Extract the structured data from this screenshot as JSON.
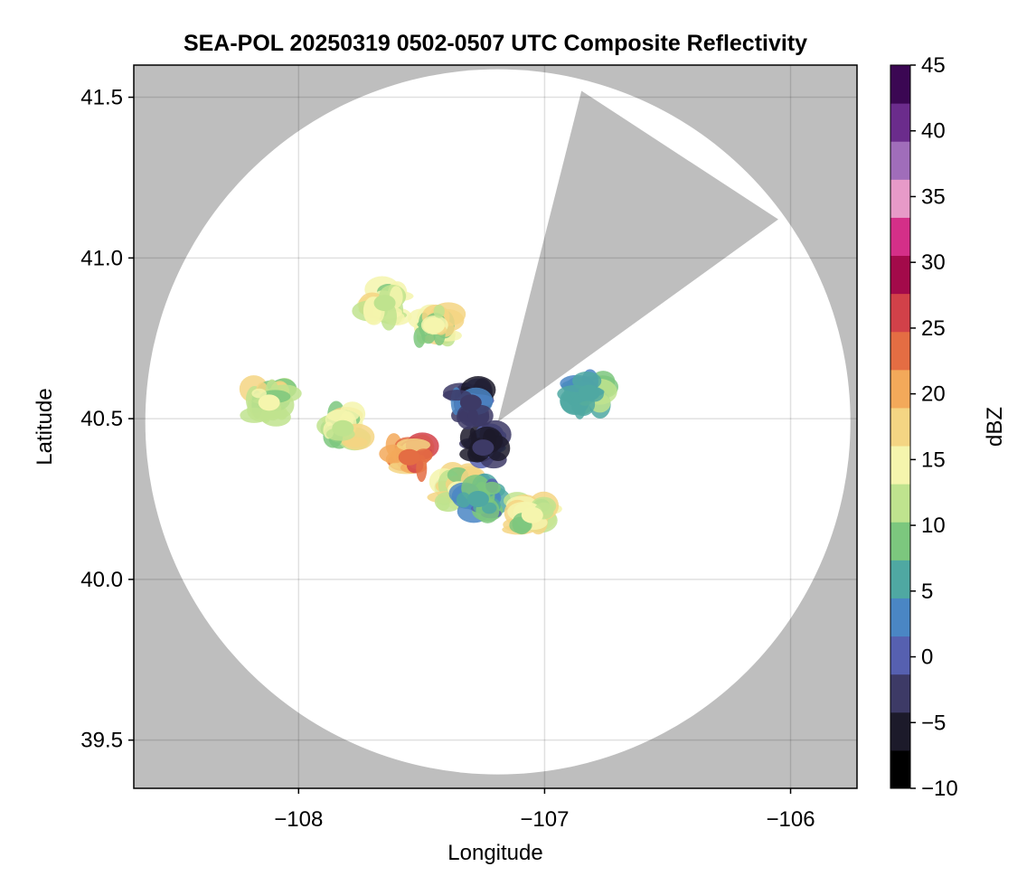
{
  "chart_data": {
    "type": "heatmap",
    "title": "SEA-POL 20250319 0502-0507 UTC Composite Reflectivity",
    "xlabel": "Longitude",
    "ylabel": "Latitude",
    "xlim": [
      -108.67,
      -105.73
    ],
    "ylim": [
      39.35,
      41.6
    ],
    "xticks": [
      -108,
      -107,
      -106
    ],
    "xtick_labels": [
      "−108",
      "−107",
      "−106"
    ],
    "yticks": [
      39.5,
      40.0,
      40.5,
      41.0,
      41.5
    ],
    "ytick_labels": [
      "39.5",
      "40.0",
      "40.5",
      "41.0",
      "41.5"
    ],
    "grid": true,
    "background_color": "#bebebe",
    "coverage_color": "#ffffff",
    "radar_center": [
      -107.19,
      40.49
    ],
    "missing_sector_lon_lat": [
      [
        -107.19,
        40.49
      ],
      [
        -106.85,
        41.52
      ],
      [
        -106.05,
        41.12
      ]
    ],
    "colorbar": {
      "label": "dBZ",
      "range": [
        -10,
        45
      ],
      "ticks": [
        -10,
        -5,
        0,
        5,
        10,
        15,
        20,
        25,
        30,
        35,
        40,
        45
      ],
      "tick_labels": [
        "−10",
        "−5",
        "0",
        "5",
        "10",
        "15",
        "20",
        "25",
        "30",
        "35",
        "40",
        "45"
      ],
      "colormap": "spectral_extended",
      "colors": [
        "#000000",
        "#1c1a2a",
        "#3d3a66",
        "#5660b0",
        "#4a86c4",
        "#4fa8a2",
        "#7cc77e",
        "#bfe38e",
        "#f5f5ad",
        "#f4d583",
        "#f3a95a",
        "#e46d43",
        "#d24149",
        "#a30a4a",
        "#d42f88",
        "#e79ac8",
        "#a06dba",
        "#6b2c8c",
        "#3b0753"
      ]
    },
    "echo_regions_lon_lat_dbz": [
      {
        "lon": -107.55,
        "lat": 40.38,
        "dbz": 22
      },
      {
        "lon": -107.35,
        "lat": 40.28,
        "dbz": 14
      },
      {
        "lon": -107.27,
        "lat": 40.25,
        "dbz": 5
      },
      {
        "lon": -107.05,
        "lat": 40.2,
        "dbz": 14
      },
      {
        "lon": -107.25,
        "lat": 40.41,
        "dbz": -2
      },
      {
        "lon": -107.3,
        "lat": 40.55,
        "dbz": -2
      },
      {
        "lon": -107.45,
        "lat": 40.79,
        "dbz": 14
      },
      {
        "lon": -107.65,
        "lat": 40.86,
        "dbz": 12
      },
      {
        "lon": -106.82,
        "lat": 40.58,
        "dbz": 6
      },
      {
        "lon": -107.82,
        "lat": 40.47,
        "dbz": 13
      },
      {
        "lon": -108.12,
        "lat": 40.55,
        "dbz": 14
      }
    ]
  }
}
